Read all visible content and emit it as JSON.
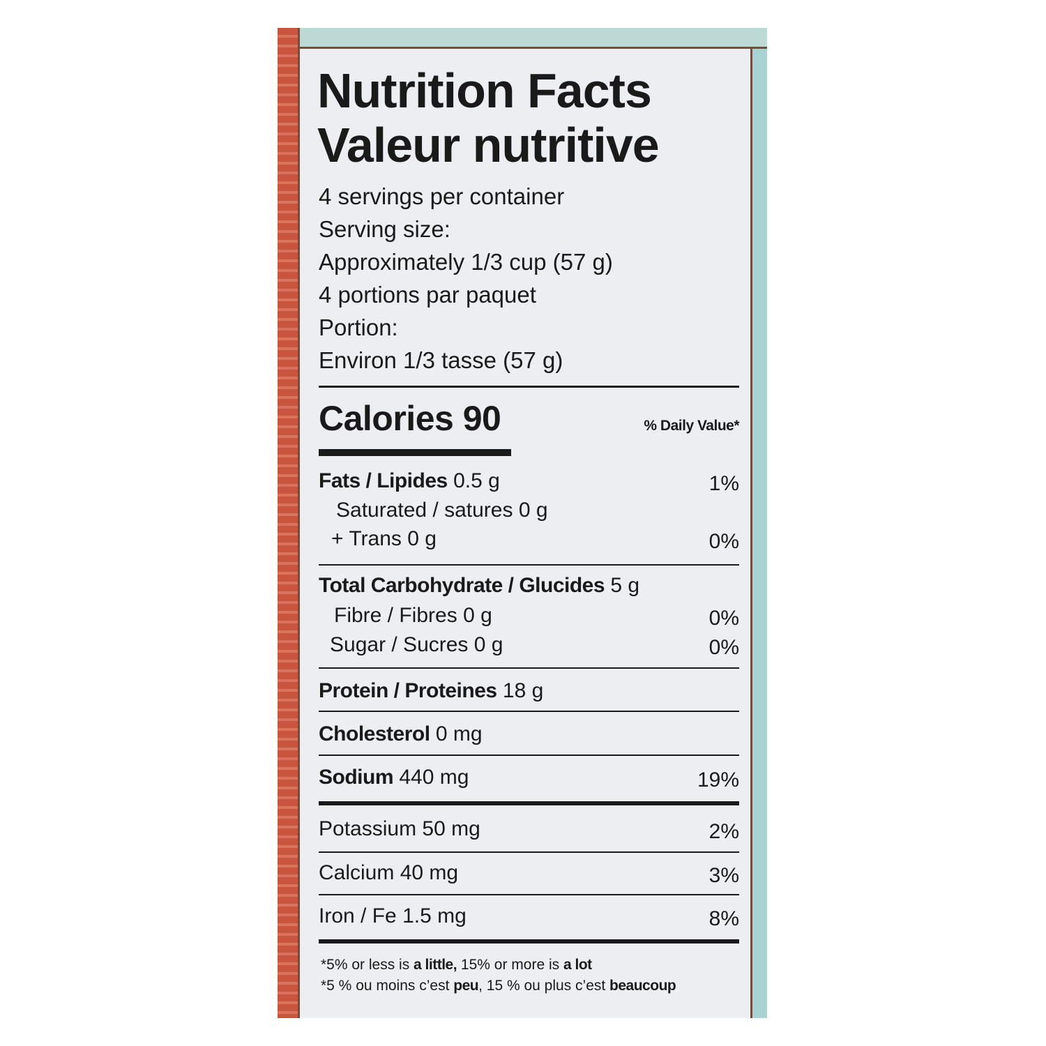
{
  "header": {
    "title_en": "Nutrition Facts",
    "title_fr": "Valeur nutritive"
  },
  "serving": [
    "4 servings per container",
    "Serving size:",
    "Approximately 1/3 cup (57 g)",
    "4 portions par paquet",
    "Portion:",
    "Environ 1/3 tasse (57 g)"
  ],
  "calories": "Calories 90",
  "daily_value_header": "% Daily Value*",
  "rows": [
    {
      "label": "Fats / Lipides",
      "amount": "0.5 g",
      "percent": "1%"
    },
    {
      "label": "Saturated / satures",
      "amount": "0 g"
    },
    {
      "label": "+ Trans",
      "amount": "0 g",
      "percent": "0%"
    },
    {
      "label": "Total Carbohydrate / Glucides",
      "amount": "5 g"
    },
    {
      "label": "Fibre / Fibres",
      "amount": "0 g",
      "percent": "0%"
    },
    {
      "label": "Sugar / Sucres",
      "amount": "0 g",
      "percent": "0%"
    },
    {
      "label": "Protein / Proteines",
      "amount": "18 g"
    },
    {
      "label": "Cholesterol",
      "amount": "0 mg"
    },
    {
      "label": "Sodium",
      "amount": "440 mg",
      "percent": "19%"
    },
    {
      "label": "Potassium",
      "amount": "50 mg",
      "percent": "2%"
    },
    {
      "label": "Calcium",
      "amount": "40 mg",
      "percent": "3%"
    },
    {
      "label": "Iron / Fe",
      "amount": "1.5 mg",
      "percent": "8%"
    }
  ],
  "footnotes": [
    [
      "*5% or less is ",
      "a little,",
      " 15% or more is ",
      "a lot"
    ],
    [
      "*5 % ou moins c’est ",
      "peu",
      ", 15 % ou plus c’est ",
      "beaucoup"
    ]
  ]
}
